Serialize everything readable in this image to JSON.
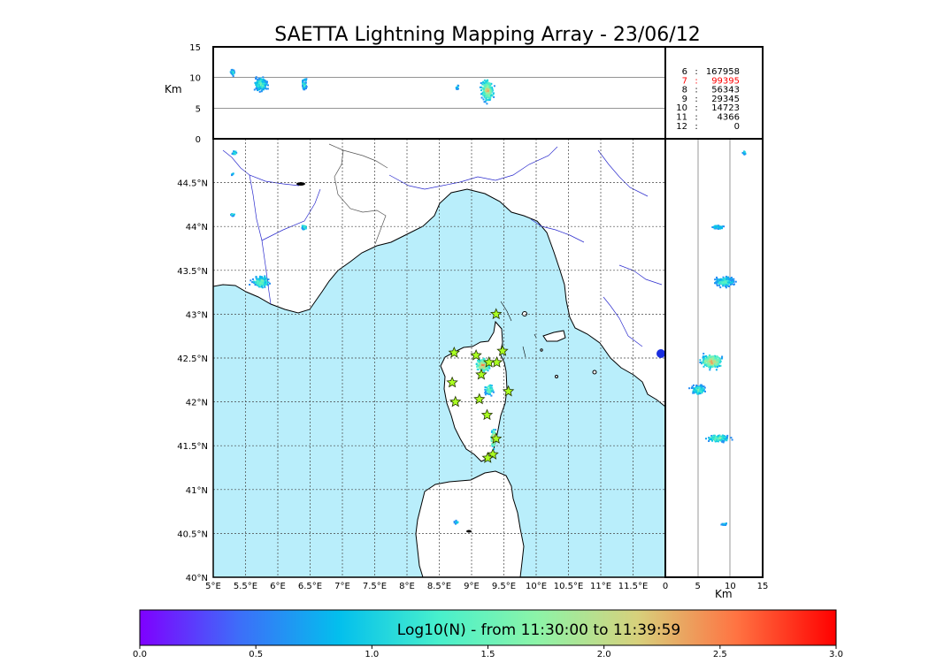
{
  "chart_data": {
    "type": "heatmap",
    "title": "SAETTA Lightning Mapping Array - 23/06/12",
    "map": {
      "xlim": [
        5,
        12
      ],
      "ylim": [
        40,
        45
      ],
      "x_ticks": [
        "5°E",
        "5.5°E",
        "6°E",
        "6.5°E",
        "7°E",
        "7.5°E",
        "8°E",
        "8.5°E",
        "9°E",
        "9.5°E",
        "10°E",
        "10.5°E",
        "11°E",
        "11.5°E"
      ],
      "y_ticks": [
        "40°N",
        "40.5°N",
        "41°N",
        "41.5°N",
        "42°N",
        "42.5°N",
        "43°N",
        "43.5°N",
        "44°N",
        "44.5°N"
      ],
      "grid": true
    },
    "altitude_top": {
      "ylabel": "Km",
      "ylim": [
        0,
        15
      ],
      "y_ticks": [
        "0",
        "5",
        "10",
        "15"
      ]
    },
    "altitude_right": {
      "xlabel": "Km",
      "xlim": [
        0,
        15
      ],
      "x_ticks": [
        "0",
        "5",
        "10",
        "15"
      ]
    },
    "stations": [
      {
        "lon": 9.38,
        "lat": 43.0
      },
      {
        "lon": 8.73,
        "lat": 42.56
      },
      {
        "lon": 9.48,
        "lat": 42.58
      },
      {
        "lon": 9.07,
        "lat": 42.53
      },
      {
        "lon": 9.39,
        "lat": 42.45
      },
      {
        "lon": 9.27,
        "lat": 42.45
      },
      {
        "lon": 9.15,
        "lat": 42.31
      },
      {
        "lon": 8.7,
        "lat": 42.22
      },
      {
        "lon": 9.57,
        "lat": 42.12
      },
      {
        "lon": 9.12,
        "lat": 42.03
      },
      {
        "lon": 8.75,
        "lat": 42.0
      },
      {
        "lon": 9.24,
        "lat": 41.85
      },
      {
        "lon": 9.38,
        "lat": 41.58
      },
      {
        "lon": 9.33,
        "lat": 41.4
      },
      {
        "lon": 9.25,
        "lat": 41.36
      }
    ],
    "source_counts": [
      {
        "label": "6",
        "value": "167958",
        "color": "#000000"
      },
      {
        "label": "7",
        "value": "99395",
        "color": "#ff0000"
      },
      {
        "label": "8",
        "value": "56343",
        "color": "#000000"
      },
      {
        "label": "9",
        "value": "29345",
        "color": "#000000"
      },
      {
        "label": "10",
        "value": "14723",
        "color": "#000000"
      },
      {
        "label": "11",
        "value": "4366",
        "color": "#000000"
      },
      {
        "label": "12",
        "value": "0",
        "color": "#000000"
      }
    ],
    "colorbar": {
      "label": "Log10(N) - from 11:30:00 to 11:39:59",
      "range": [
        0,
        3
      ],
      "ticks": [
        "0.0",
        "0.5",
        "1.0",
        "1.5",
        "2.0",
        "2.5",
        "3.0"
      ],
      "colormap": [
        "#7f00ff",
        "#3d6ef9",
        "#03bfed",
        "#48f0cc",
        "#8cf4a8",
        "#d7d17c",
        "#ff7342",
        "#ff0000"
      ]
    },
    "colors": {
      "sea": "#b9eefb",
      "land": "#ffffff",
      "coast": "#000000",
      "river": "#2a2acd",
      "station": "#aaff22"
    }
  }
}
